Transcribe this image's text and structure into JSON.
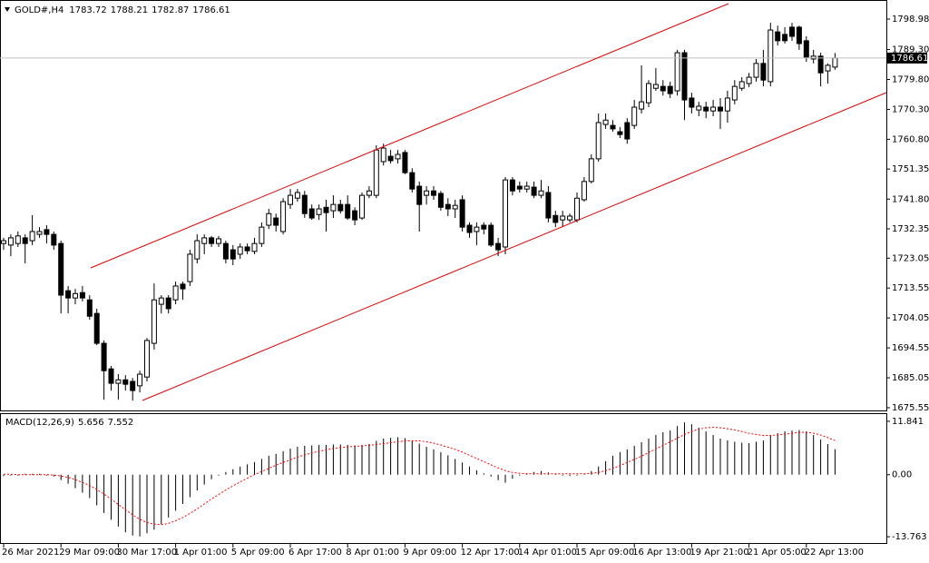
{
  "chart_data": [
    {
      "type": "candlestick",
      "title": "GOLD#,H4",
      "categories": [
        "26 Mar 2021",
        null,
        null,
        null,
        null,
        null,
        null,
        null,
        "29 Mar 09:00",
        null,
        null,
        null,
        null,
        null,
        null,
        null,
        "30 Mar 17:00",
        null,
        null,
        null,
        null,
        null,
        null,
        null,
        "1 Apr 01:00",
        null,
        null,
        null,
        null,
        null,
        null,
        null,
        "5 Apr 09:00",
        null,
        null,
        null,
        null,
        null,
        null,
        null,
        "6 Apr 17:00",
        null,
        null,
        null,
        null,
        null,
        null,
        null,
        "8 Apr 01:00",
        null,
        null,
        null,
        null,
        null,
        null,
        null,
        "9 Apr 09:00",
        null,
        null,
        null,
        null,
        null,
        null,
        null,
        "12 Apr 17:00",
        null,
        null,
        null,
        null,
        null,
        null,
        null,
        "14 Apr 01:00",
        null,
        null,
        null,
        null,
        null,
        null,
        null,
        "15 Apr 09:00",
        null,
        null,
        null,
        null,
        null,
        null,
        null,
        "16 Apr 13:00",
        null,
        null,
        null,
        null,
        null,
        null,
        null,
        "19 Apr 21:00",
        null,
        null,
        null,
        null,
        null,
        null,
        null,
        "21 Apr 05:00",
        null,
        null,
        null,
        null,
        null,
        null,
        null,
        "22 Apr 13:00",
        null,
        null,
        null,
        null
      ],
      "open": [
        1727.7,
        1727.2,
        1727.7,
        1729.5,
        1728.6,
        1730.6,
        1732.1,
        1730.6,
        1727.7,
        1712.7,
        1710.4,
        1712.1,
        1709.8,
        1705.5,
        1696.0,
        1687.9,
        1683.3,
        1684.4,
        1683.9,
        1682.5,
        1685.3,
        1696.0,
        1708.4,
        1710.4,
        1709.8,
        1714.8,
        1715.6,
        1722.8,
        1727.7,
        1729.5,
        1727.7,
        1727.7,
        1725.7,
        1724.3,
        1726.6,
        1725.2,
        1727.7,
        1733.5,
        1735.8,
        1731.5,
        1740.1,
        1742.1,
        1743.0,
        1738.7,
        1736.9,
        1739.2,
        1738.1,
        1740.1,
        1740.1,
        1738.1,
        1735.8,
        1743.0,
        1743.0,
        1753.7,
        1755.4,
        1754.6,
        1756.6,
        1750.2,
        1745.9,
        1743.0,
        1744.4,
        1743.6,
        1740.1,
        1738.7,
        1741.6,
        1733.5,
        1731.5,
        1733.5,
        1733.5,
        1727.7,
        1726.6,
        1747.9,
        1745.9,
        1745.0,
        1745.6,
        1743.0,
        1743.9,
        1736.6,
        1735.2,
        1735.2,
        1735.2,
        1741.6,
        1747.4,
        1754.6,
        1765.5,
        1765.2,
        1763.2,
        1766.1,
        1765.2,
        1770.4,
        1772.4,
        1777.0,
        1777.6,
        1777.6,
        1776.2,
        1788.3,
        1773.9,
        1770.1,
        1771.0,
        1769.8,
        1771.0,
        1769.8,
        1773.3,
        1777.0,
        1778.5,
        1780.5,
        1784.9,
        1779.1,
        1794.9,
        1794.1,
        1796.4,
        1796.4,
        1792.1,
        1786.3,
        1787.2,
        1782.5,
        1783.72
      ],
      "high": [
        1729.5,
        1730.6,
        1731.5,
        1730.6,
        1736.7,
        1732.9,
        1733.5,
        1731.5,
        1728.6,
        1714.2,
        1713.3,
        1714.2,
        1711.3,
        1707.0,
        1696.9,
        1688.8,
        1686.2,
        1685.9,
        1685.0,
        1687.3,
        1697.7,
        1715.0,
        1711.3,
        1711.3,
        1715.6,
        1715.6,
        1725.7,
        1730.6,
        1730.6,
        1730.1,
        1730.1,
        1728.6,
        1727.2,
        1727.7,
        1727.7,
        1729.5,
        1734.4,
        1738.7,
        1737.2,
        1742.1,
        1745.0,
        1745.0,
        1744.4,
        1740.1,
        1740.1,
        1741.6,
        1743.0,
        1741.6,
        1743.0,
        1739.2,
        1743.9,
        1745.9,
        1758.9,
        1759.4,
        1757.4,
        1757.4,
        1757.4,
        1751.6,
        1747.4,
        1745.9,
        1745.9,
        1744.4,
        1742.1,
        1741.6,
        1743.0,
        1734.4,
        1734.4,
        1734.4,
        1734.4,
        1729.5,
        1748.8,
        1748.8,
        1747.4,
        1747.4,
        1747.4,
        1747.9,
        1745.9,
        1738.1,
        1738.1,
        1737.2,
        1743.9,
        1748.8,
        1756.0,
        1769.0,
        1769.0,
        1766.9,
        1764.7,
        1767.5,
        1773.3,
        1784.3,
        1779.6,
        1783.4,
        1779.6,
        1779.1,
        1789.2,
        1789.2,
        1775.6,
        1772.7,
        1772.7,
        1773.3,
        1773.9,
        1776.2,
        1779.6,
        1780.5,
        1781.9,
        1786.3,
        1789.2,
        1797.8,
        1796.9,
        1796.4,
        1797.8,
        1796.9,
        1793.5,
        1789.2,
        1788.3,
        1784.9,
        1788.21
      ],
      "low": [
        1725.7,
        1723.7,
        1726.6,
        1721.4,
        1727.2,
        1729.5,
        1727.7,
        1725.7,
        1705.5,
        1705.5,
        1708.4,
        1709.3,
        1703.5,
        1695.4,
        1678.1,
        1681.0,
        1678.1,
        1681.0,
        1677.8,
        1680.4,
        1683.9,
        1694.0,
        1705.5,
        1705.5,
        1708.4,
        1709.8,
        1714.2,
        1721.4,
        1724.3,
        1726.6,
        1726.6,
        1721.4,
        1720.8,
        1722.8,
        1724.3,
        1724.3,
        1726.6,
        1732.3,
        1731.5,
        1730.6,
        1738.7,
        1741.0,
        1735.8,
        1735.2,
        1735.2,
        1731.5,
        1735.8,
        1737.2,
        1735.2,
        1733.5,
        1735.2,
        1742.1,
        1742.1,
        1752.5,
        1753.1,
        1753.1,
        1749.7,
        1743.9,
        1731.5,
        1740.1,
        1741.6,
        1738.1,
        1736.4,
        1735.8,
        1731.5,
        1729.5,
        1727.2,
        1730.6,
        1726.6,
        1723.7,
        1724.3,
        1743.0,
        1743.9,
        1743.9,
        1742.1,
        1742.1,
        1734.4,
        1732.9,
        1732.9,
        1734.4,
        1734.4,
        1741.0,
        1746.8,
        1753.7,
        1764.1,
        1763.2,
        1761.2,
        1759.4,
        1764.1,
        1769.0,
        1771.0,
        1776.2,
        1774.7,
        1773.9,
        1774.7,
        1766.9,
        1769.0,
        1768.1,
        1767.5,
        1768.1,
        1764.1,
        1766.1,
        1771.9,
        1776.2,
        1777.3,
        1779.1,
        1777.6,
        1777.6,
        1790.6,
        1791.2,
        1792.1,
        1789.2,
        1785.4,
        1784.9,
        1777.6,
        1778.5,
        1782.87
      ],
      "close": [
        1728.6,
        1729.5,
        1730.1,
        1727.7,
        1731.5,
        1731.5,
        1730.6,
        1727.2,
        1711.3,
        1710.4,
        1711.8,
        1710.4,
        1704.6,
        1696.0,
        1687.3,
        1683.3,
        1684.4,
        1683.0,
        1681.0,
        1686.2,
        1696.9,
        1709.8,
        1710.4,
        1707.0,
        1714.2,
        1713.3,
        1724.3,
        1728.6,
        1729.5,
        1727.7,
        1729.2,
        1722.8,
        1722.8,
        1726.6,
        1725.4,
        1727.7,
        1732.9,
        1737.2,
        1733.5,
        1741.0,
        1743.0,
        1743.9,
        1737.2,
        1735.8,
        1738.7,
        1737.5,
        1740.1,
        1738.1,
        1735.8,
        1735.2,
        1743.0,
        1744.4,
        1757.4,
        1758.0,
        1754.0,
        1756.0,
        1750.2,
        1745.0,
        1740.1,
        1744.4,
        1743.0,
        1739.2,
        1738.7,
        1739.8,
        1732.9,
        1731.2,
        1732.9,
        1732.3,
        1727.2,
        1725.7,
        1747.9,
        1744.4,
        1745.0,
        1745.9,
        1743.0,
        1744.4,
        1735.8,
        1734.4,
        1736.4,
        1736.4,
        1742.1,
        1747.4,
        1754.6,
        1766.1,
        1766.9,
        1764.1,
        1762.3,
        1760.9,
        1771.0,
        1772.7,
        1778.5,
        1778.2,
        1776.2,
        1775.3,
        1788.3,
        1773.3,
        1771.0,
        1771.3,
        1769.8,
        1771.0,
        1769.8,
        1773.9,
        1777.6,
        1779.1,
        1780.5,
        1784.9,
        1779.6,
        1795.5,
        1792.1,
        1792.1,
        1793.5,
        1791.2,
        1786.9,
        1787.2,
        1781.9,
        1784.3,
        1786.61
      ],
      "up_color": "#ffffff",
      "down_color": "#000000",
      "wick_color": "#000000",
      "price_line_color": "#c0c0c0",
      "ylim": [
        1674.68,
        1804.17
      ],
      "yticks": [
        1798.98,
        {
          "value": 1789.3,
          "label": "1789.30"
        },
        {
          "value": 1779.8,
          "label": "1779.80"
        },
        {
          "value": 1770.3,
          "label": "1770.30"
        },
        {
          "value": 1760.8,
          "label": "1760.80"
        },
        1751.35,
        {
          "value": 1741.8,
          "label": "1741.80"
        },
        1732.35,
        1723.05,
        1713.55,
        1704.05,
        1694.55,
        1685.05,
        1675.55
      ]
    },
    {
      "type": "macd",
      "title": "MACD(12,26,9)",
      "values": [
        -0.3,
        -0.2,
        -0.1,
        0.0,
        0.1,
        0.0,
        -0.2,
        -0.4,
        -1.2,
        -2.0,
        -3.0,
        -4.0,
        -5.2,
        -6.8,
        -8.5,
        -10.0,
        -11.5,
        -12.8,
        -13.5,
        -13.7,
        -13.0,
        -12.2,
        -11.0,
        -9.5,
        -8.0,
        -6.5,
        -5.0,
        -3.5,
        -2.2,
        -1.0,
        -0.2,
        0.6,
        1.2,
        1.8,
        2.3,
        2.8,
        3.5,
        4.2,
        4.6,
        5.2,
        5.8,
        6.2,
        6.4,
        6.5,
        6.6,
        6.6,
        6.7,
        6.7,
        6.6,
        6.5,
        6.6,
        6.8,
        7.5,
        8.0,
        8.2,
        8.3,
        8.1,
        7.6,
        6.9,
        6.2,
        5.6,
        5.0,
        4.3,
        3.5,
        2.7,
        1.8,
        1.0,
        0.3,
        -0.4,
        -1.2,
        -1.8,
        -0.9,
        -0.2,
        0.3,
        0.6,
        0.8,
        0.5,
        0.2,
        -0.1,
        -0.3,
        -0.2,
        0.2,
        0.8,
        1.8,
        3.0,
        4.2,
        5.0,
        5.6,
        6.4,
        7.2,
        8.0,
        8.8,
        9.4,
        9.8,
        10.8,
        11.6,
        11.2,
        10.4,
        9.6,
        8.8,
        8.0,
        7.6,
        7.3,
        7.1,
        7.0,
        7.3,
        7.6,
        8.6,
        9.2,
        9.6,
        9.8,
        9.9,
        9.6,
        8.8,
        7.8,
        6.8,
        5.656
      ],
      "signal": [
        0.1,
        0.1,
        0.0,
        0.0,
        0.0,
        0.0,
        0.0,
        -0.1,
        -0.3,
        -0.6,
        -1.1,
        -1.7,
        -2.4,
        -3.3,
        -4.3,
        -5.4,
        -6.6,
        -7.8,
        -8.9,
        -9.9,
        -10.6,
        -11.0,
        -11.1,
        -10.8,
        -10.2,
        -9.5,
        -8.6,
        -7.6,
        -6.5,
        -5.4,
        -4.4,
        -3.4,
        -2.5,
        -1.6,
        -0.8,
        0.0,
        0.7,
        1.4,
        2.1,
        2.7,
        3.3,
        3.9,
        4.4,
        4.8,
        5.2,
        5.5,
        5.8,
        6.0,
        6.2,
        6.3,
        6.4,
        6.5,
        6.7,
        6.9,
        7.1,
        7.3,
        7.5,
        7.5,
        7.5,
        7.3,
        7.0,
        6.6,
        6.1,
        5.6,
        5.0,
        4.3,
        3.6,
        2.9,
        2.2,
        1.5,
        0.9,
        0.5,
        0.3,
        0.2,
        0.2,
        0.2,
        0.2,
        0.2,
        0.2,
        0.2,
        0.2,
        0.2,
        0.3,
        0.5,
        0.9,
        1.4,
        2.0,
        2.7,
        3.4,
        4.1,
        4.9,
        5.7,
        6.5,
        7.3,
        8.1,
        8.9,
        9.6,
        10.1,
        10.4,
        10.5,
        10.4,
        10.2,
        9.9,
        9.6,
        9.2,
        8.9,
        8.7,
        8.7,
        8.8,
        9.0,
        9.2,
        9.4,
        9.4,
        9.2,
        8.8,
        8.2,
        7.552
      ],
      "color": "#000000",
      "signal_color": "#ff0000",
      "ylim": [
        -15.16,
        13.24
      ],
      "yticks": [
        11.841,
        {
          "value": 0,
          "label": "0.00"
        },
        -13.763
      ]
    }
  ]
}
